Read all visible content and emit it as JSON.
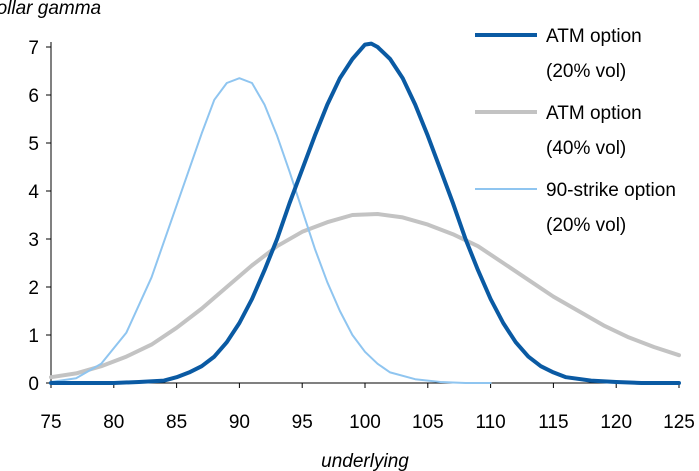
{
  "chart_data": {
    "type": "line",
    "title": "",
    "ylabel": "dollar gamma",
    "xlabel": "underlying",
    "xlim": [
      75,
      125
    ],
    "ylim": [
      0,
      7
    ],
    "xticks": [
      75,
      80,
      85,
      90,
      95,
      100,
      105,
      110,
      115,
      120,
      125
    ],
    "yticks": [
      0,
      1,
      2,
      3,
      4,
      5,
      6,
      7
    ],
    "grid": false,
    "legend_position": "top-right",
    "series": [
      {
        "name": "ATM option (20% vol)",
        "legend_lines": [
          "ATM option",
          "(20% vol)"
        ],
        "color": "#0a5aa3",
        "points": [
          [
            75,
            0
          ],
          [
            80,
            0
          ],
          [
            82,
            0.02
          ],
          [
            84,
            0.05
          ],
          [
            85,
            0.12
          ],
          [
            86,
            0.22
          ],
          [
            87,
            0.35
          ],
          [
            88,
            0.55
          ],
          [
            89,
            0.85
          ],
          [
            90,
            1.25
          ],
          [
            91,
            1.75
          ],
          [
            92,
            2.35
          ],
          [
            93,
            3.0
          ],
          [
            94,
            3.75
          ],
          [
            95,
            4.45
          ],
          [
            96,
            5.15
          ],
          [
            97,
            5.8
          ],
          [
            98,
            6.35
          ],
          [
            99,
            6.75
          ],
          [
            100,
            7.05
          ],
          [
            100.5,
            7.07
          ],
          [
            101,
            7.0
          ],
          [
            102,
            6.75
          ],
          [
            103,
            6.35
          ],
          [
            104,
            5.8
          ],
          [
            105,
            5.15
          ],
          [
            106,
            4.45
          ],
          [
            107,
            3.75
          ],
          [
            108,
            3.0
          ],
          [
            109,
            2.35
          ],
          [
            110,
            1.75
          ],
          [
            111,
            1.25
          ],
          [
            112,
            0.85
          ],
          [
            113,
            0.55
          ],
          [
            114,
            0.35
          ],
          [
            115,
            0.22
          ],
          [
            116,
            0.12
          ],
          [
            118,
            0.05
          ],
          [
            120,
            0.02
          ],
          [
            122,
            0
          ],
          [
            125,
            0
          ]
        ]
      },
      {
        "name": "ATM option (40% vol)",
        "legend_lines": [
          "ATM option",
          "(40% vol)"
        ],
        "color": "#c3c3c3",
        "points": [
          [
            75,
            0.12
          ],
          [
            77,
            0.2
          ],
          [
            79,
            0.35
          ],
          [
            81,
            0.55
          ],
          [
            83,
            0.8
          ],
          [
            85,
            1.15
          ],
          [
            87,
            1.55
          ],
          [
            89,
            2.0
          ],
          [
            91,
            2.45
          ],
          [
            93,
            2.85
          ],
          [
            95,
            3.15
          ],
          [
            97,
            3.35
          ],
          [
            99,
            3.5
          ],
          [
            101,
            3.52
          ],
          [
            103,
            3.45
          ],
          [
            105,
            3.3
          ],
          [
            107,
            3.1
          ],
          [
            109,
            2.85
          ],
          [
            111,
            2.5
          ],
          [
            113,
            2.15
          ],
          [
            115,
            1.8
          ],
          [
            117,
            1.5
          ],
          [
            119,
            1.2
          ],
          [
            121,
            0.95
          ],
          [
            123,
            0.75
          ],
          [
            125,
            0.58
          ]
        ]
      },
      {
        "name": "90-strike option (20% vol)",
        "legend_lines": [
          "90-strike option",
          "(20% vol)"
        ],
        "color": "#8fc5f0",
        "points": [
          [
            75,
            0.02
          ],
          [
            77,
            0.1
          ],
          [
            79,
            0.4
          ],
          [
            81,
            1.05
          ],
          [
            83,
            2.2
          ],
          [
            85,
            3.7
          ],
          [
            87,
            5.2
          ],
          [
            88,
            5.9
          ],
          [
            89,
            6.25
          ],
          [
            90,
            6.35
          ],
          [
            91,
            6.25
          ],
          [
            92,
            5.8
          ],
          [
            93,
            5.15
          ],
          [
            94,
            4.4
          ],
          [
            95,
            3.6
          ],
          [
            96,
            2.8
          ],
          [
            97,
            2.1
          ],
          [
            98,
            1.5
          ],
          [
            99,
            1.0
          ],
          [
            100,
            0.65
          ],
          [
            101,
            0.4
          ],
          [
            102,
            0.22
          ],
          [
            104,
            0.08
          ],
          [
            106,
            0.02
          ],
          [
            108,
            0
          ],
          [
            110,
            0
          ]
        ]
      }
    ]
  }
}
